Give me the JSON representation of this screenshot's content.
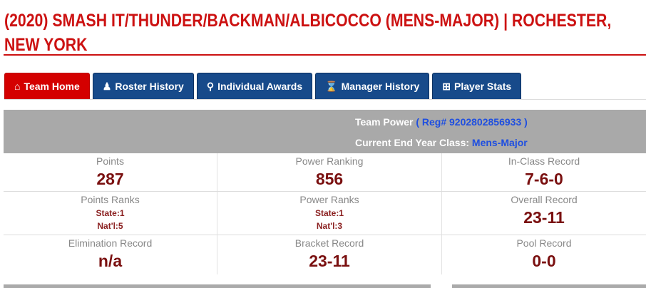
{
  "title": "(2020) SMASH IT/THUNDER/BACKMAN/ALBICOCCO (MENS-MAJOR) | ROCHESTER, NEW YORK",
  "tabs": [
    {
      "label": "Team Home",
      "icon": "home-icon",
      "active": true
    },
    {
      "label": "Roster History",
      "icon": "users-icon"
    },
    {
      "label": "Individual Awards",
      "icon": "trophy-icon"
    },
    {
      "label": "Manager History",
      "icon": "hourglass-icon"
    },
    {
      "label": "Player Stats",
      "icon": "table-icon"
    }
  ],
  "banner": {
    "team_power_label": "Team Power",
    "reg": "( Reg# 9202802856933 )",
    "class_label": "Current End Year Class:",
    "class_value": "Mens-Major"
  },
  "stats": {
    "points": {
      "label": "Points",
      "value": "287"
    },
    "power_ranking": {
      "label": "Power Ranking",
      "value": "856"
    },
    "in_class": {
      "label": "In-Class Record",
      "value": "7-6-0"
    },
    "points_ranks": {
      "label": "Points Ranks",
      "state": "State:1",
      "natl": "Nat'l:5"
    },
    "power_ranks": {
      "label": "Power Ranks",
      "state": "State:1",
      "natl": "Nat'l:3"
    },
    "overall": {
      "label": "Overall Record",
      "value": "23-11"
    },
    "elimination": {
      "label": "Elimination Record",
      "value": "n/a"
    },
    "bracket": {
      "label": "Bracket Record",
      "value": "23-11"
    },
    "pool": {
      "label": "Pool Record",
      "value": "0-0"
    }
  },
  "colors": {
    "accent": "#cc1111",
    "tab": "#174a8a",
    "active_tab": "#d40000",
    "value": "#7a1010"
  }
}
